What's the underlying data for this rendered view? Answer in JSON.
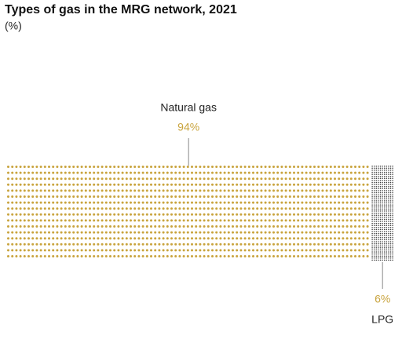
{
  "chart_data": {
    "type": "waffle",
    "title": "Types of gas in the MRG network, 2021",
    "subtitle": "(%)",
    "categories": [
      "Natural gas",
      "LPG"
    ],
    "values": [
      94,
      6
    ],
    "value_labels": [
      "94%",
      "6%"
    ],
    "series_colors": [
      "#c9a43e",
      "#3a3a3a"
    ]
  }
}
